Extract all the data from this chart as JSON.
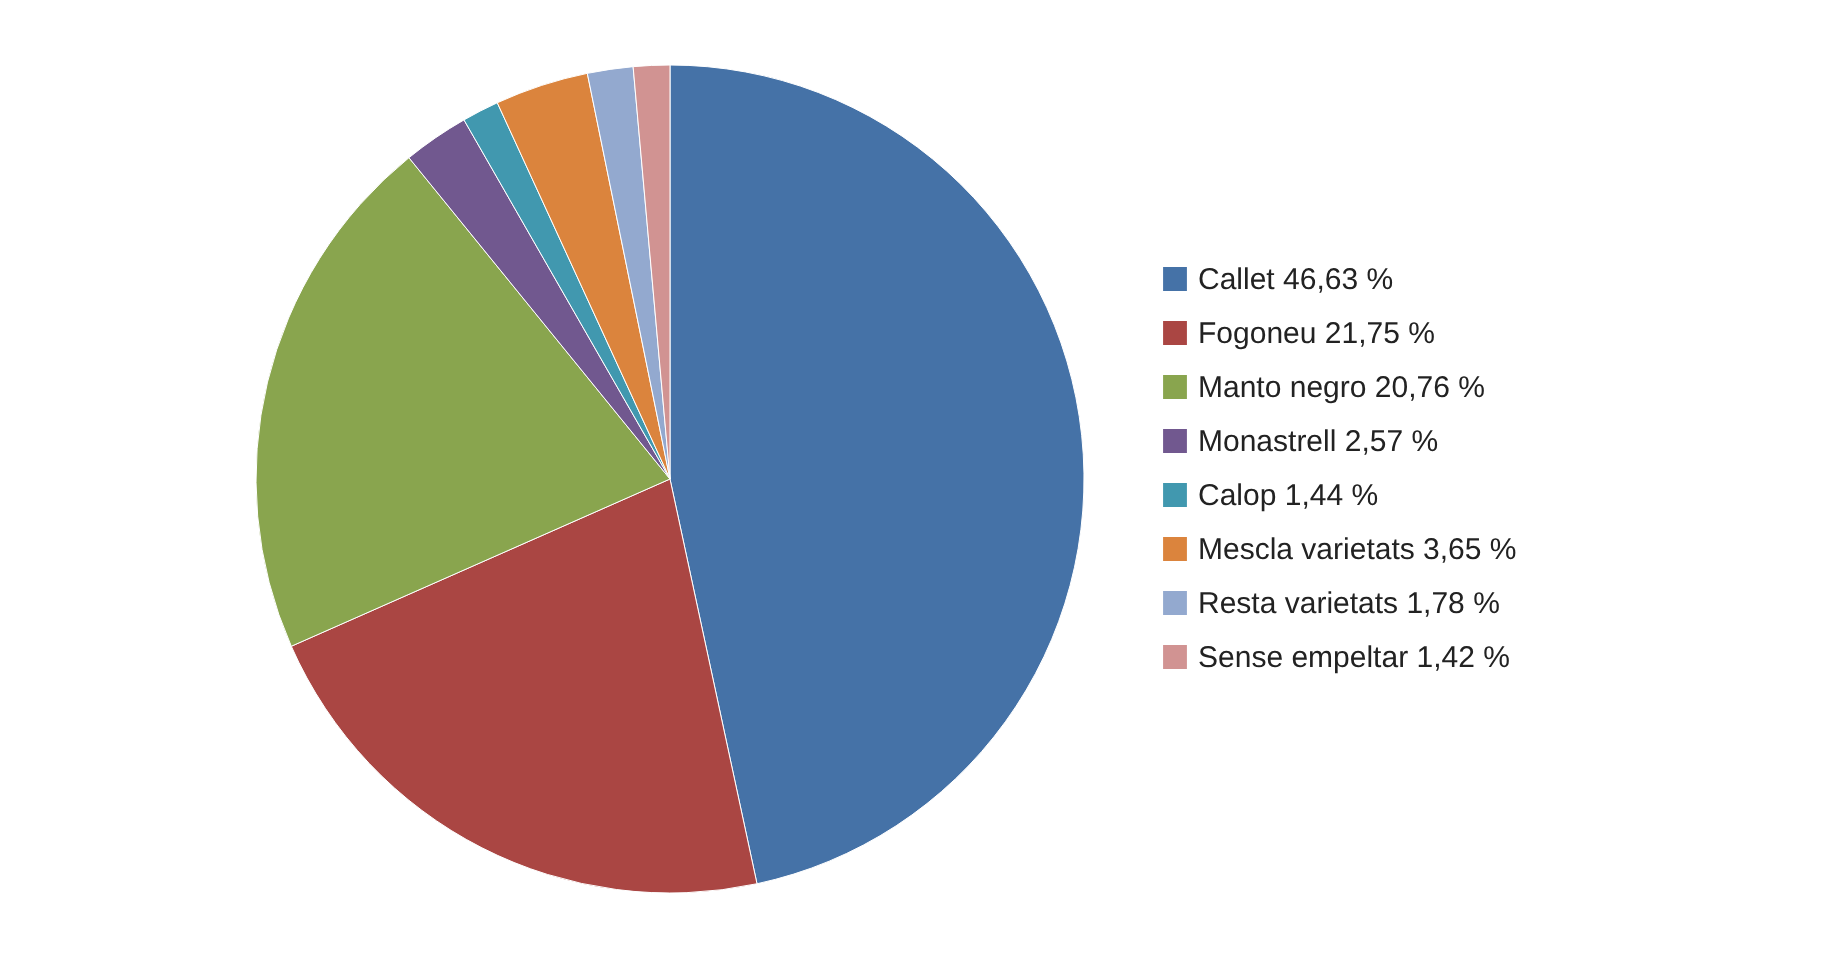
{
  "chart_data": {
    "type": "pie",
    "categories": [
      "Callet  46,63 %",
      "Fogoneu  21,75 %",
      "Manto negro  20,76 %",
      "Monastrell  2,57 %",
      "Calop 1,44 %",
      "Mescla varietats 3,65 %",
      "Resta varietats 1,78 %",
      "Sense empeltar 1,42 %"
    ],
    "values": [
      46.63,
      21.75,
      20.76,
      2.57,
      1.44,
      3.65,
      1.78,
      1.42
    ],
    "colors": [
      "#4572a7",
      "#aa4643",
      "#89a54e",
      "#71588f",
      "#4198af",
      "#db843d",
      "#93a9cf",
      "#d19392"
    ],
    "legend": "right"
  }
}
